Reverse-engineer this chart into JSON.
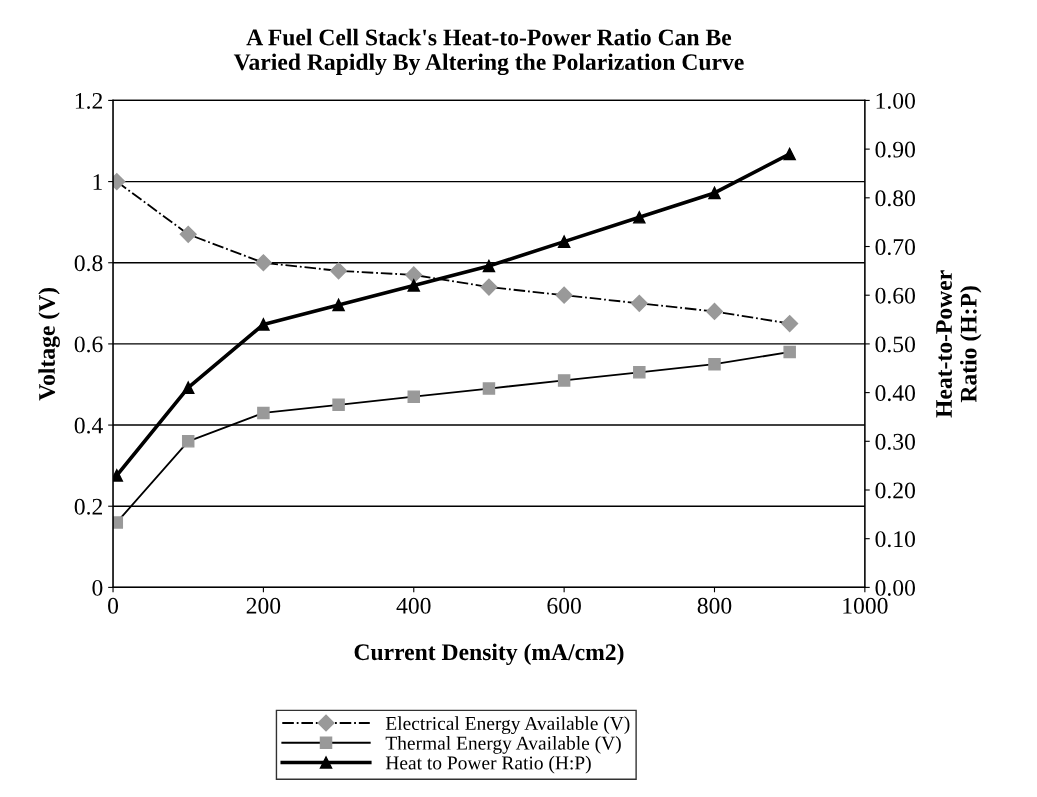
{
  "chart_data": {
    "type": "line",
    "title": "A Fuel Cell Stack's Heat-to-Power Ratio Can Be\nVaried Rapidly By Altering the Polarization Curve",
    "xlabel": "Current Density (mA/cm2)",
    "ylabel": "Voltage (V)",
    "y2label": "Heat-to-Power\nRatio (H:P)",
    "x": [
      5,
      100,
      200,
      300,
      400,
      500,
      600,
      700,
      800,
      900
    ],
    "series": [
      {
        "name": "Electrical Energy Available (V)",
        "color": "#999999",
        "marker": "diamond",
        "line_style": "dashdot",
        "values": [
          1.0,
          0.87,
          0.8,
          0.78,
          0.77,
          0.74,
          0.72,
          0.7,
          0.68,
          0.65
        ]
      },
      {
        "name": "Thermal Energy Available (V)",
        "color": "#999999",
        "marker": "square",
        "line_style": "solid",
        "values": [
          0.16,
          0.36,
          0.43,
          0.45,
          0.47,
          0.49,
          0.51,
          0.53,
          0.55,
          0.58
        ]
      },
      {
        "name": "Heat to Power Ratio (H:P)",
        "color": "#000000",
        "marker": "triangle",
        "line_style": "solid",
        "axis": "y2",
        "values": [
          0.23,
          0.41,
          0.54,
          0.58,
          0.62,
          0.66,
          0.71,
          0.76,
          0.81,
          0.89
        ]
      }
    ],
    "xlim": [
      0,
      1000
    ],
    "xticks": [
      0,
      200,
      400,
      600,
      800,
      1000
    ],
    "ylim": [
      0,
      1.2
    ],
    "yticks": [
      0,
      0.2,
      0.4,
      0.6,
      0.8,
      1,
      1.2
    ],
    "y2lim": [
      0,
      1.0
    ],
    "y2ticks": [
      {
        "value": 0,
        "label": "0.00"
      },
      {
        "value": 0.1,
        "label": "0.10"
      },
      {
        "value": 0.2,
        "label": "0.20"
      },
      {
        "value": 0.3,
        "label": "0.30"
      },
      {
        "value": 0.4,
        "label": "0.40"
      },
      {
        "value": 0.5,
        "label": "0.50"
      },
      {
        "value": 0.6,
        "label": "0.60"
      },
      {
        "value": 0.7,
        "label": "0.70"
      },
      {
        "value": 0.8,
        "label": "0.80"
      },
      {
        "value": 0.9,
        "label": "0.90"
      },
      {
        "value": 1.0,
        "label": "1.00"
      }
    ],
    "grid": "y",
    "legend": "bottom"
  }
}
